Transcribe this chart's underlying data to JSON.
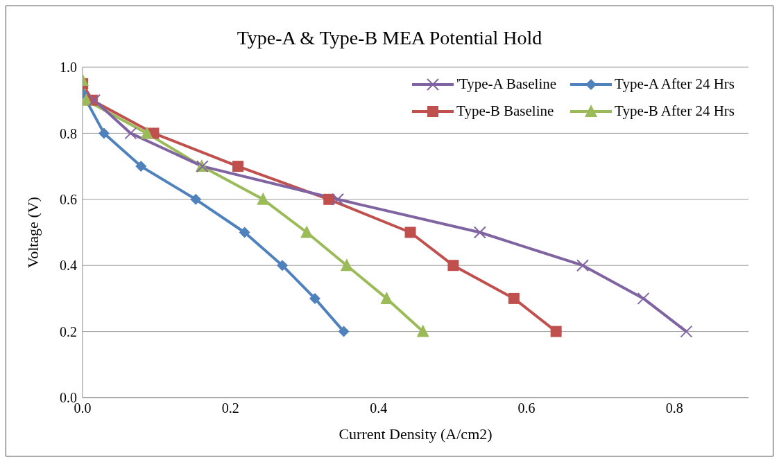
{
  "chart_data": {
    "type": "line",
    "title": "Type-A & Type-B MEA Potential Hold",
    "xlabel": "Current Density (A/cm2)",
    "ylabel": "Voltage (V)",
    "xlim": [
      0,
      0.9
    ],
    "xticks": [
      {
        "value": 0,
        "label": "0.0"
      },
      0.2,
      0.4,
      0.6,
      0.8
    ],
    "ylim": [
      0,
      1
    ],
    "yticks": [
      {
        "value": 0,
        "label": "0.0"
      },
      0.2,
      0.4,
      0.6,
      0.8,
      {
        "value": 1,
        "label": "1.0"
      }
    ],
    "grid": "y",
    "legend": "top right",
    "series": [
      {
        "name": "'Type-A Baseline",
        "color": "#8064a2",
        "marker": "cross",
        "x": [
          0.016,
          0.065,
          0.162,
          0.345,
          0.537,
          0.676,
          0.758,
          0.816
        ],
        "values": [
          0.9,
          0.8,
          0.7,
          0.6,
          0.5,
          0.4,
          0.3,
          0.2
        ]
      },
      {
        "name": "Type-A After 24 Hrs",
        "color": "#4f81bd",
        "marker": "diamond",
        "x": [
          0,
          0.029,
          0.079,
          0.153,
          0.219,
          0.27,
          0.314,
          0.353
        ],
        "values": [
          0.92,
          0.8,
          0.7,
          0.6,
          0.5,
          0.4,
          0.3,
          0.2
        ]
      },
      {
        "name": "Type-B Baseline",
        "color": "#c0504d",
        "marker": "square",
        "x": [
          0,
          0.013,
          0.096,
          0.21,
          0.333,
          0.443,
          0.501,
          0.583,
          0.64
        ],
        "values": [
          0.95,
          0.9,
          0.8,
          0.7,
          0.6,
          0.5,
          0.4,
          0.3,
          0.2
        ]
      },
      {
        "name": "Type-B After 24 Hrs",
        "color": "#9bbb59",
        "marker": "triangle",
        "x": [
          0,
          0.005,
          0.087,
          0.161,
          0.244,
          0.303,
          0.357,
          0.411,
          0.46
        ],
        "values": [
          0.96,
          0.9,
          0.8,
          0.7,
          0.6,
          0.5,
          0.4,
          0.3,
          0.2
        ]
      }
    ]
  }
}
